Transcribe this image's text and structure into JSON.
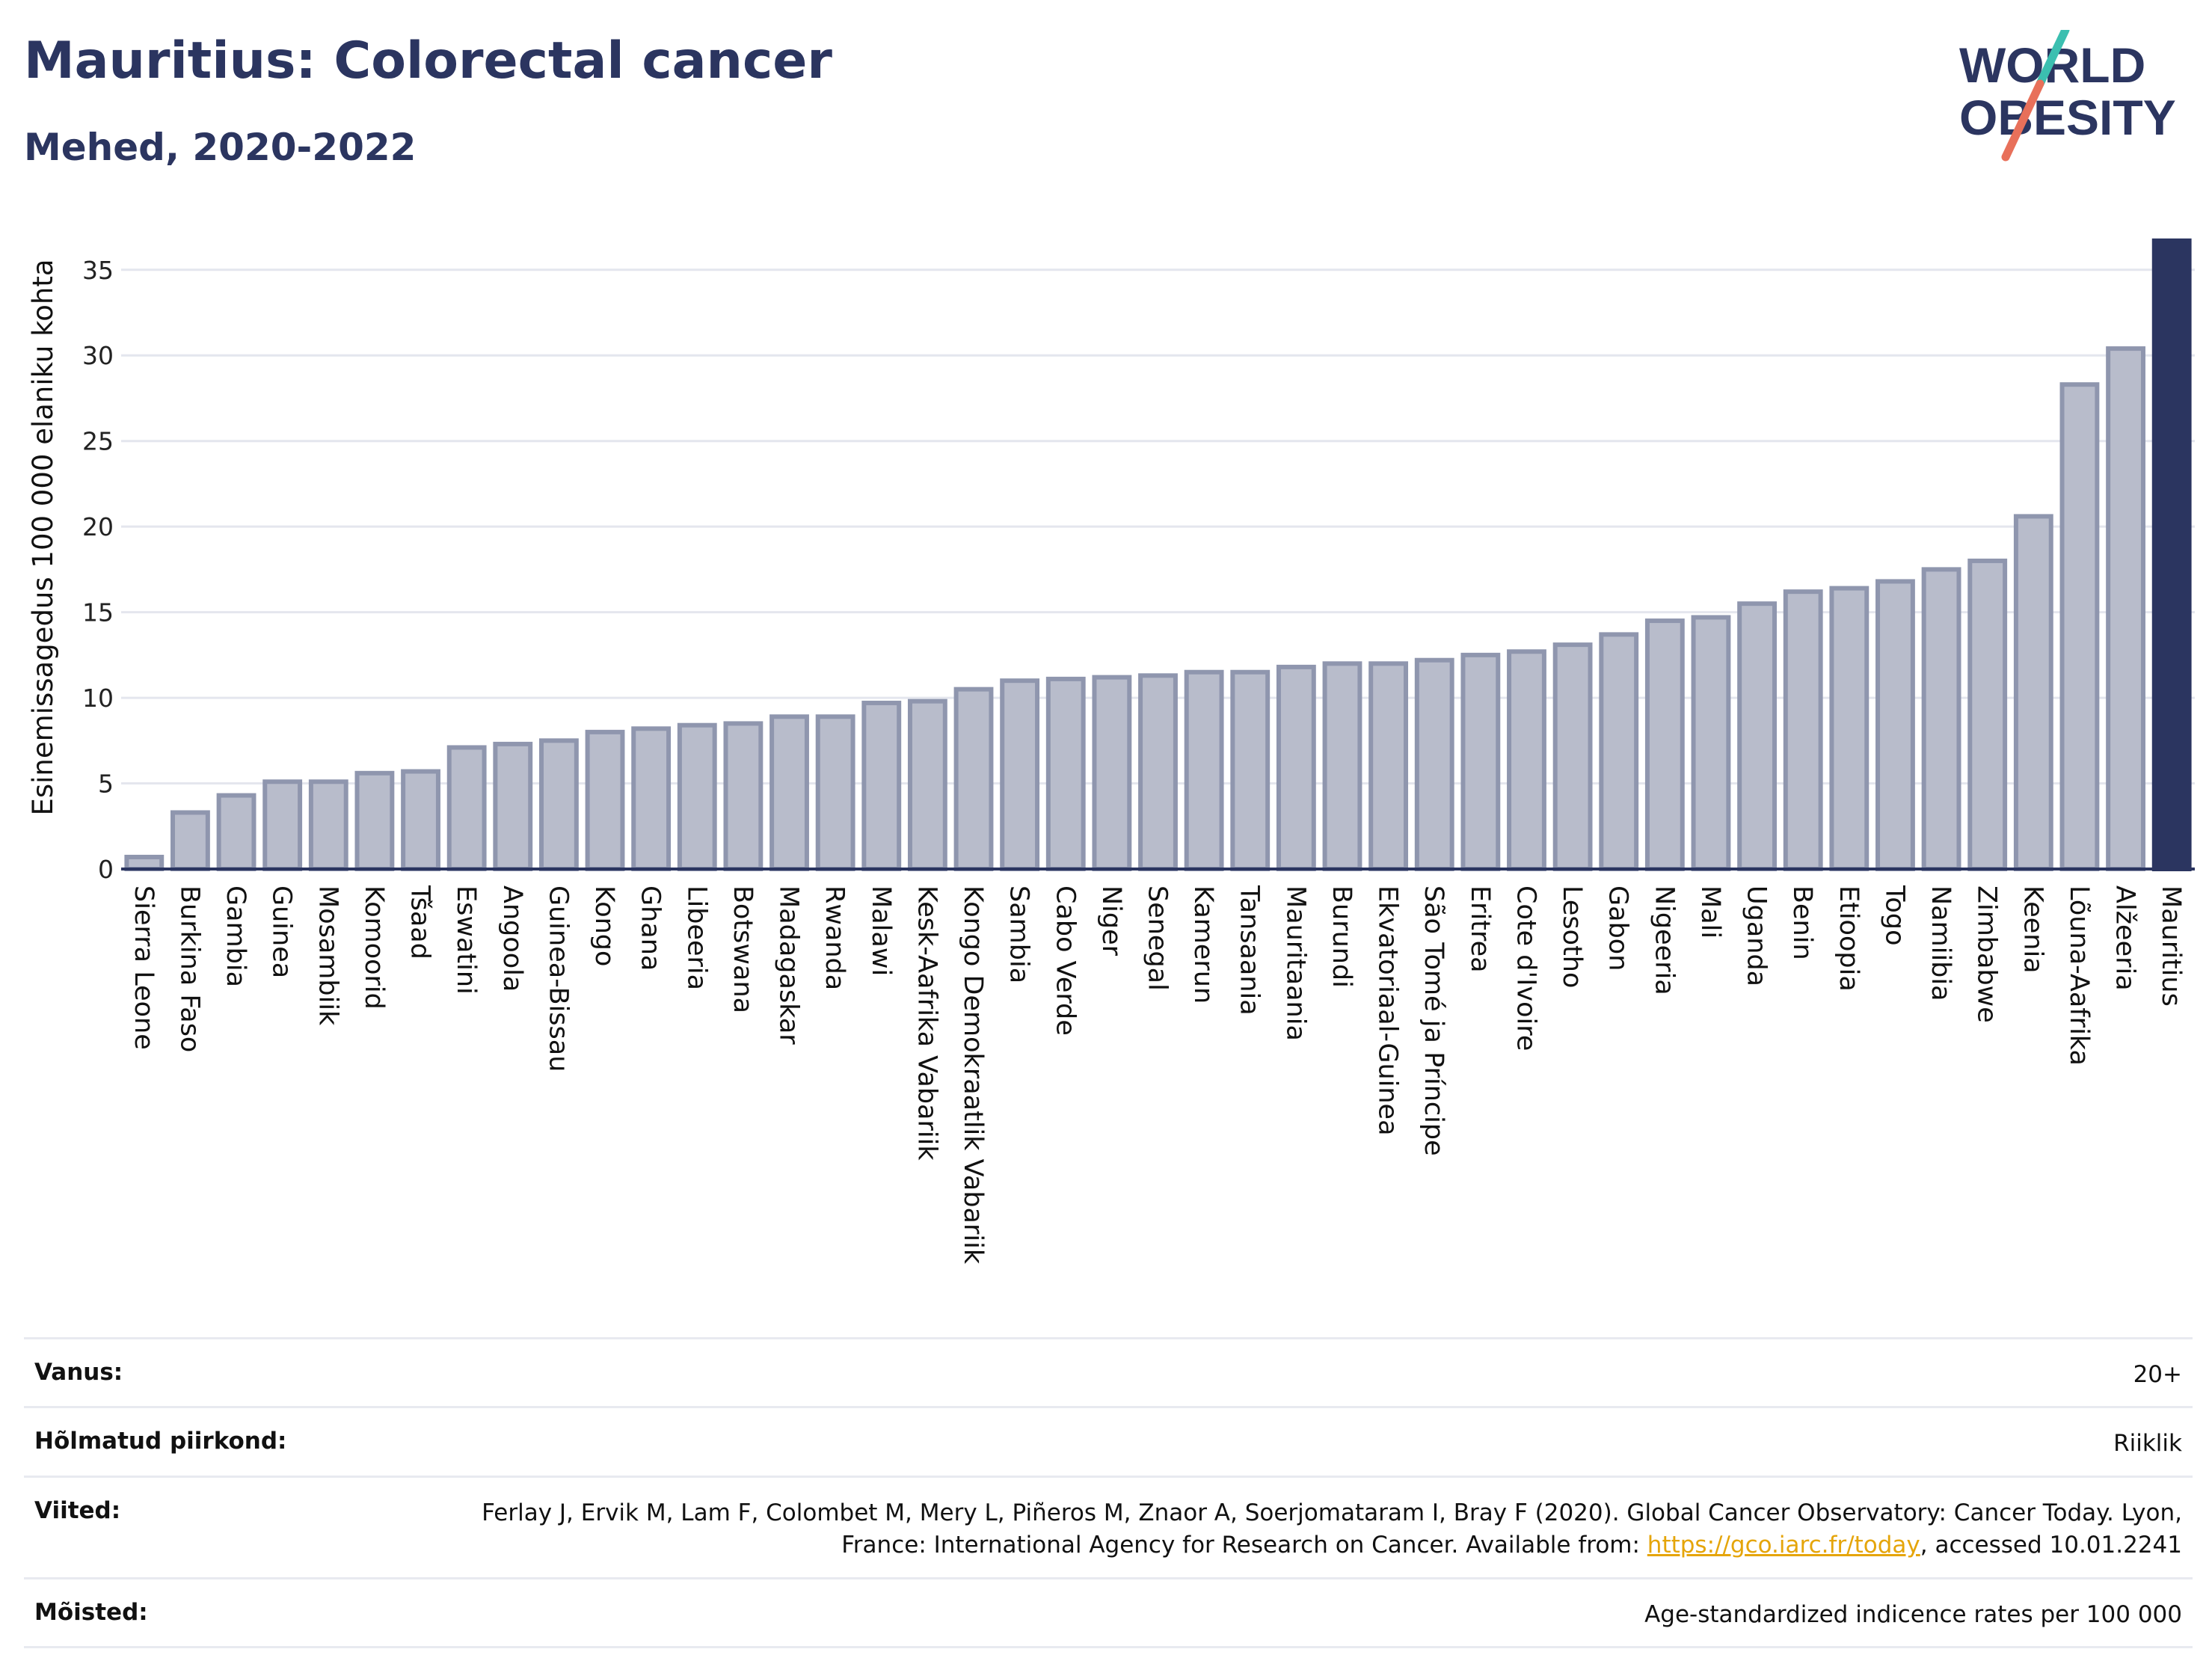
{
  "header": {
    "title": "Mauritius: Colorectal cancer",
    "subtitle": "Mehed, 2020-2022"
  },
  "logo": {
    "line1": "WORLD",
    "line2": "OBESITY",
    "colors": {
      "text": "#2b3560",
      "slash_teal": "#3bbfb0",
      "slash_coral": "#e8705a"
    }
  },
  "chart_data": {
    "type": "bar",
    "ylabel": "Esinemissagedus 100 000 elaniku kohta",
    "ylim": [
      0,
      37
    ],
    "yticks": [
      0,
      5,
      10,
      15,
      20,
      25,
      30,
      35
    ],
    "grid": true,
    "highlight": "Mauritius",
    "colors": {
      "bar": "#b8bccb",
      "bar_edge": "#8f96ae",
      "highlight": "#2b3560",
      "grid": "#e4e6ee",
      "axis": "#2b3560"
    },
    "categories": [
      "Sierra Leone",
      "Burkina Faso",
      "Gambia",
      "Guinea",
      "Mosambiik",
      "Komoorid",
      "Tšaad",
      "Eswatini",
      "Angoola",
      "Guinea-Bissau",
      "Kongo",
      "Ghana",
      "Libeeria",
      "Botswana",
      "Madagaskar",
      "Rwanda",
      "Malawi",
      "Kesk-Aafrika Vabariik",
      "Kongo Demokraatlik Vabariik",
      "Sambia",
      "Cabo Verde",
      "Niger",
      "Senegal",
      "Kamerun",
      "Tansaania",
      "Mauritaania",
      "Burundi",
      "Ekvatoriaal-Guinea",
      "São Tomé ja Príncipe",
      "Eritrea",
      "Cote d'Ivoire",
      "Lesotho",
      "Gabon",
      "Nigeeria",
      "Mali",
      "Uganda",
      "Benin",
      "Etioopia",
      "Togo",
      "Namiibia",
      "Zimbabwe",
      "Keenia",
      "Lõuna-Aafrika",
      "Alžeeria",
      "Mauritius"
    ],
    "values": [
      0.7,
      3.3,
      4.3,
      5.1,
      5.1,
      5.6,
      5.7,
      7.1,
      7.3,
      7.5,
      8.0,
      8.2,
      8.4,
      8.5,
      8.9,
      8.9,
      9.7,
      9.8,
      10.5,
      11.0,
      11.1,
      11.2,
      11.3,
      11.5,
      11.5,
      11.8,
      12.0,
      12.0,
      12.2,
      12.5,
      12.7,
      13.1,
      13.7,
      14.5,
      14.7,
      15.5,
      16.2,
      16.4,
      16.8,
      17.5,
      18.0,
      20.6,
      28.3,
      30.4,
      36.7
    ]
  },
  "meta": {
    "age_label": "Vanus:",
    "age_value": "20+",
    "region_label": "Hõlmatud piirkond:",
    "region_value": "Riiklik",
    "refs_label": "Viited:",
    "refs_text_1": "Ferlay J, Ervik M, Lam F, Colombet M, Mery L, Piñeros M, Znaor A, Soerjomataram I, Bray F (2020). Global Cancer Observatory: Cancer Today. Lyon, France: International Agency for Research on Cancer. Available from: ",
    "refs_link": "https://gco.iarc.fr/today",
    "refs_text_2": ", accessed 10.01.2241",
    "defs_label": "Mõisted:",
    "defs_value": "Age-standardized indicence rates per 100 000"
  }
}
